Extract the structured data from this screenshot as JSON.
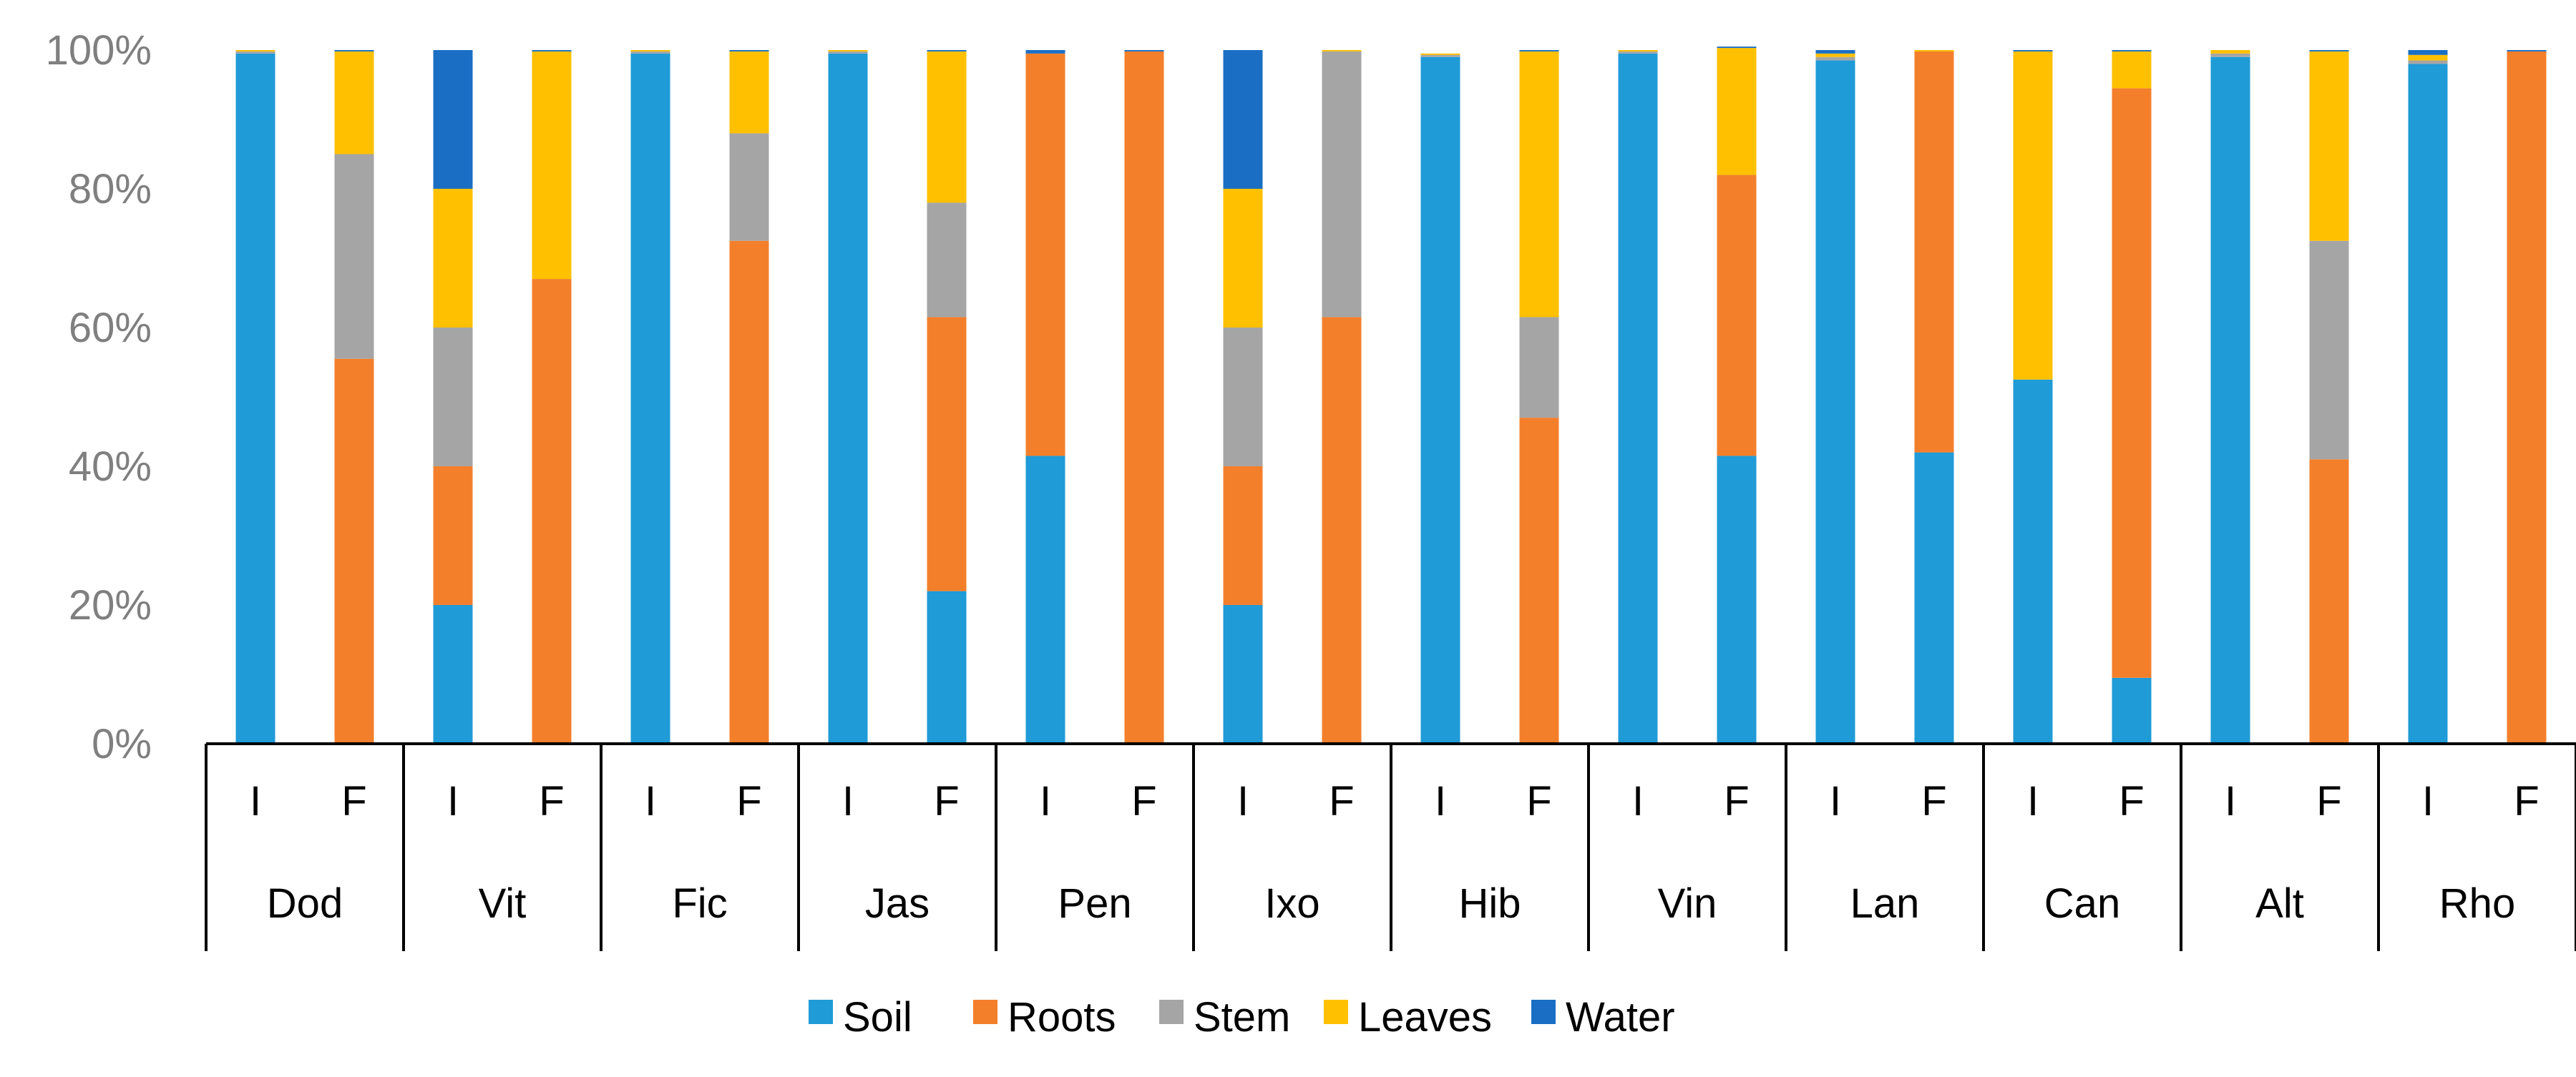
{
  "chart_data": {
    "type": "bar",
    "stacked": "percent",
    "title": "",
    "xlabel": "",
    "ylabel": "",
    "ylim": [
      0,
      100
    ],
    "y_ticks": [
      "0%",
      "20%",
      "40%",
      "60%",
      "80%",
      "100%"
    ],
    "groups": [
      "Dod",
      "Vit",
      "Fic",
      "Jas",
      "Pen",
      "Ixo",
      "Hib",
      "Vin",
      "Lan",
      "Can",
      "Alt",
      "Rho"
    ],
    "sub_categories": [
      "I",
      "F"
    ],
    "series_colors": {
      "Soil": "#1f9bd7",
      "Roots": "#f47f2b",
      "Stem": "#a5a5a5",
      "Leaves": "#ffc000",
      "Water": "#1a6fc4"
    },
    "series": [
      {
        "name": "Soil",
        "values": [
          99.5,
          0,
          20,
          0,
          99.5,
          0,
          99.5,
          22,
          41.5,
          0,
          20,
          0,
          99,
          0,
          99.5,
          41.5,
          98.5,
          42,
          52.5,
          9.5,
          99,
          0,
          98,
          0
        ]
      },
      {
        "name": "Roots",
        "values": [
          0,
          55.5,
          20,
          67,
          0,
          72.5,
          0,
          39.5,
          58,
          99.8,
          20,
          61.5,
          0,
          47,
          0,
          40.5,
          0,
          57.8,
          0,
          85,
          0,
          41,
          0,
          99.8
        ]
      },
      {
        "name": "Stem",
        "values": [
          0.3,
          29.5,
          20,
          0,
          0.3,
          15.5,
          0.3,
          16.5,
          0,
          0,
          20,
          38.3,
          0.3,
          14.5,
          0.3,
          0,
          0.5,
          0,
          0,
          0,
          0.5,
          31.5,
          0.5,
          0
        ]
      },
      {
        "name": "Leaves",
        "values": [
          0.2,
          14.8,
          20,
          32.8,
          0.2,
          11.8,
          0.2,
          21.8,
          0,
          0,
          20,
          0.2,
          0.2,
          38.3,
          0.2,
          18.3,
          0.5,
          0.2,
          47.3,
          5.3,
          0.5,
          27.3,
          0.8,
          0
        ]
      },
      {
        "name": "Water",
        "values": [
          0,
          0.2,
          20,
          0.2,
          0,
          0.2,
          0,
          0.2,
          0.5,
          0.2,
          20,
          0,
          0,
          0.2,
          0,
          0.2,
          0.5,
          0,
          0.2,
          0.2,
          0,
          0.2,
          0.7,
          0.2
        ]
      }
    ],
    "legend": [
      "Soil",
      "Roots",
      "Stem",
      "Leaves",
      "Water"
    ],
    "legend_position": "bottom",
    "grid": false
  }
}
